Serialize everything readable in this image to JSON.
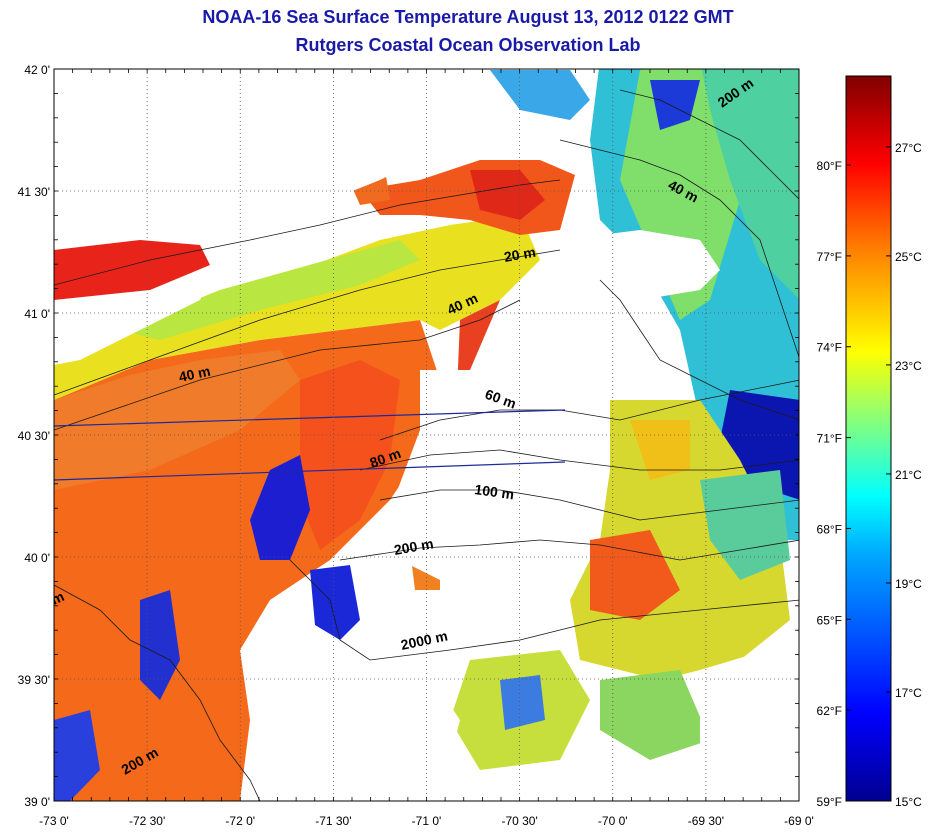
{
  "header": {
    "title": "NOAA-16 Sea Surface Temperature August 13, 2012 0122 GMT",
    "subtitle": "Rutgers Coastal Ocean Observation Lab"
  },
  "map": {
    "lon_range": [
      -73,
      -69
    ],
    "lat_range": [
      39,
      42
    ],
    "lon_ticks": [
      {
        "value": -73,
        "label": "-73 0'"
      },
      {
        "value": -72.5,
        "label": "-72 30'"
      },
      {
        "value": -72,
        "label": "-72 0'"
      },
      {
        "value": -71.5,
        "label": "-71 30'"
      },
      {
        "value": -71,
        "label": "-71 0'"
      },
      {
        "value": -70.5,
        "label": "-70 30'"
      },
      {
        "value": -70,
        "label": "-70 0'"
      },
      {
        "value": -69.5,
        "label": "-69 30'"
      },
      {
        "value": -69,
        "label": "-69 0'"
      }
    ],
    "lat_ticks": [
      {
        "value": 42,
        "label": "42 0'"
      },
      {
        "value": 41.5,
        "label": "41 30'"
      },
      {
        "value": 41,
        "label": "41 0'"
      },
      {
        "value": 40.5,
        "label": "40 30'"
      },
      {
        "value": 40,
        "label": "40 0'"
      },
      {
        "value": 39.5,
        "label": "39 30'"
      },
      {
        "value": 39,
        "label": "39 0'"
      }
    ],
    "grid": true,
    "isobath_labels": [
      "20 m",
      "40 m",
      "40 m",
      "40 m",
      "60 m",
      "80 m",
      "100 m",
      "200 m",
      "200 m",
      "200 m",
      "2000 m",
      "m"
    ]
  },
  "colorbar": {
    "celsius_ticks": [
      {
        "value": 15,
        "label": "15°C"
      },
      {
        "value": 17,
        "label": "17°C"
      },
      {
        "value": 19,
        "label": "19°C"
      },
      {
        "value": 21,
        "label": "21°C"
      },
      {
        "value": 23,
        "label": "23°C"
      },
      {
        "value": 25,
        "label": "25°C"
      },
      {
        "value": 27,
        "label": "27°C"
      }
    ],
    "fahrenheit_ticks": [
      {
        "value": 59,
        "label": "59°F"
      },
      {
        "value": 62,
        "label": "62°F"
      },
      {
        "value": 65,
        "label": "65°F"
      },
      {
        "value": 68,
        "label": "68°F"
      },
      {
        "value": 71,
        "label": "71°F"
      },
      {
        "value": 74,
        "label": "74°F"
      },
      {
        "value": 77,
        "label": "77°F"
      },
      {
        "value": 80,
        "label": "80°F"
      }
    ],
    "range_c": [
      15,
      28.3
    ],
    "colormap": "jet",
    "colors": [
      "#00008f",
      "#0000ff",
      "#00a0ff",
      "#00ffff",
      "#80ff80",
      "#ffff00",
      "#ff8000",
      "#ff0000",
      "#800000"
    ]
  }
}
